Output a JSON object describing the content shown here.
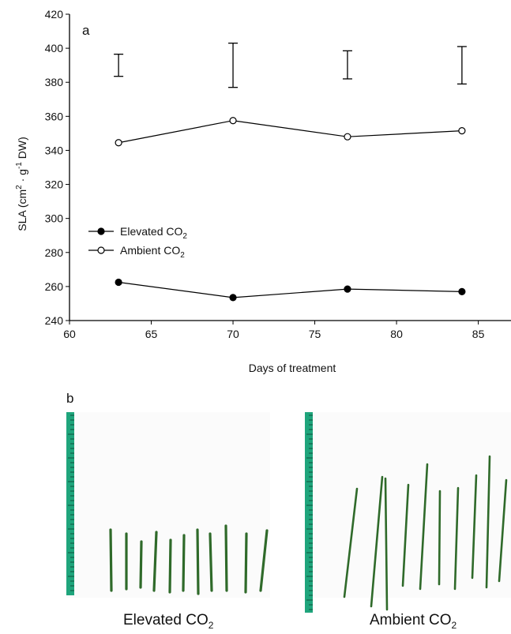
{
  "chart_data": {
    "type": "line",
    "panel_label": "a",
    "xlabel": "Days of treatment",
    "ylabel_parts": {
      "base": "SLA (cm",
      "sup1": "2",
      "mid": " · g",
      "sup2": "-1",
      "end": " DW)"
    },
    "xlim": [
      60,
      87
    ],
    "ylim": [
      240,
      420
    ],
    "xticks": [
      60,
      65,
      70,
      75,
      80,
      85
    ],
    "yticks": [
      240,
      260,
      280,
      300,
      320,
      340,
      360,
      380,
      400,
      420
    ],
    "x": [
      63,
      70,
      77,
      84
    ],
    "series": [
      {
        "name": "Elevated CO2",
        "label_text": "Elevated CO",
        "label_sub": "2",
        "marker": "filled",
        "values": [
          262.5,
          253.5,
          258.5,
          257.0
        ]
      },
      {
        "name": "Ambient CO2",
        "label_text": "Ambient CO",
        "label_sub": "2",
        "marker": "open",
        "values": [
          344.5,
          357.5,
          348.0,
          351.5
        ]
      }
    ],
    "error_bars": [
      {
        "x": 63,
        "low": 383.5,
        "high": 396.5
      },
      {
        "x": 70,
        "low": 377.0,
        "high": 403.0
      },
      {
        "x": 77,
        "low": 382.0,
        "high": 398.5
      },
      {
        "x": 84,
        "low": 379.0,
        "high": 401.0
      }
    ],
    "legend_position": "left",
    "grid": false
  },
  "panel_b": {
    "label": "b",
    "left_caption": {
      "text": "Elevated CO",
      "sub": "2"
    },
    "right_caption": {
      "text": "Ambient CO",
      "sub": "2"
    },
    "ruler_color": "#1fa57c",
    "needle_color": "#2f6a2a"
  }
}
